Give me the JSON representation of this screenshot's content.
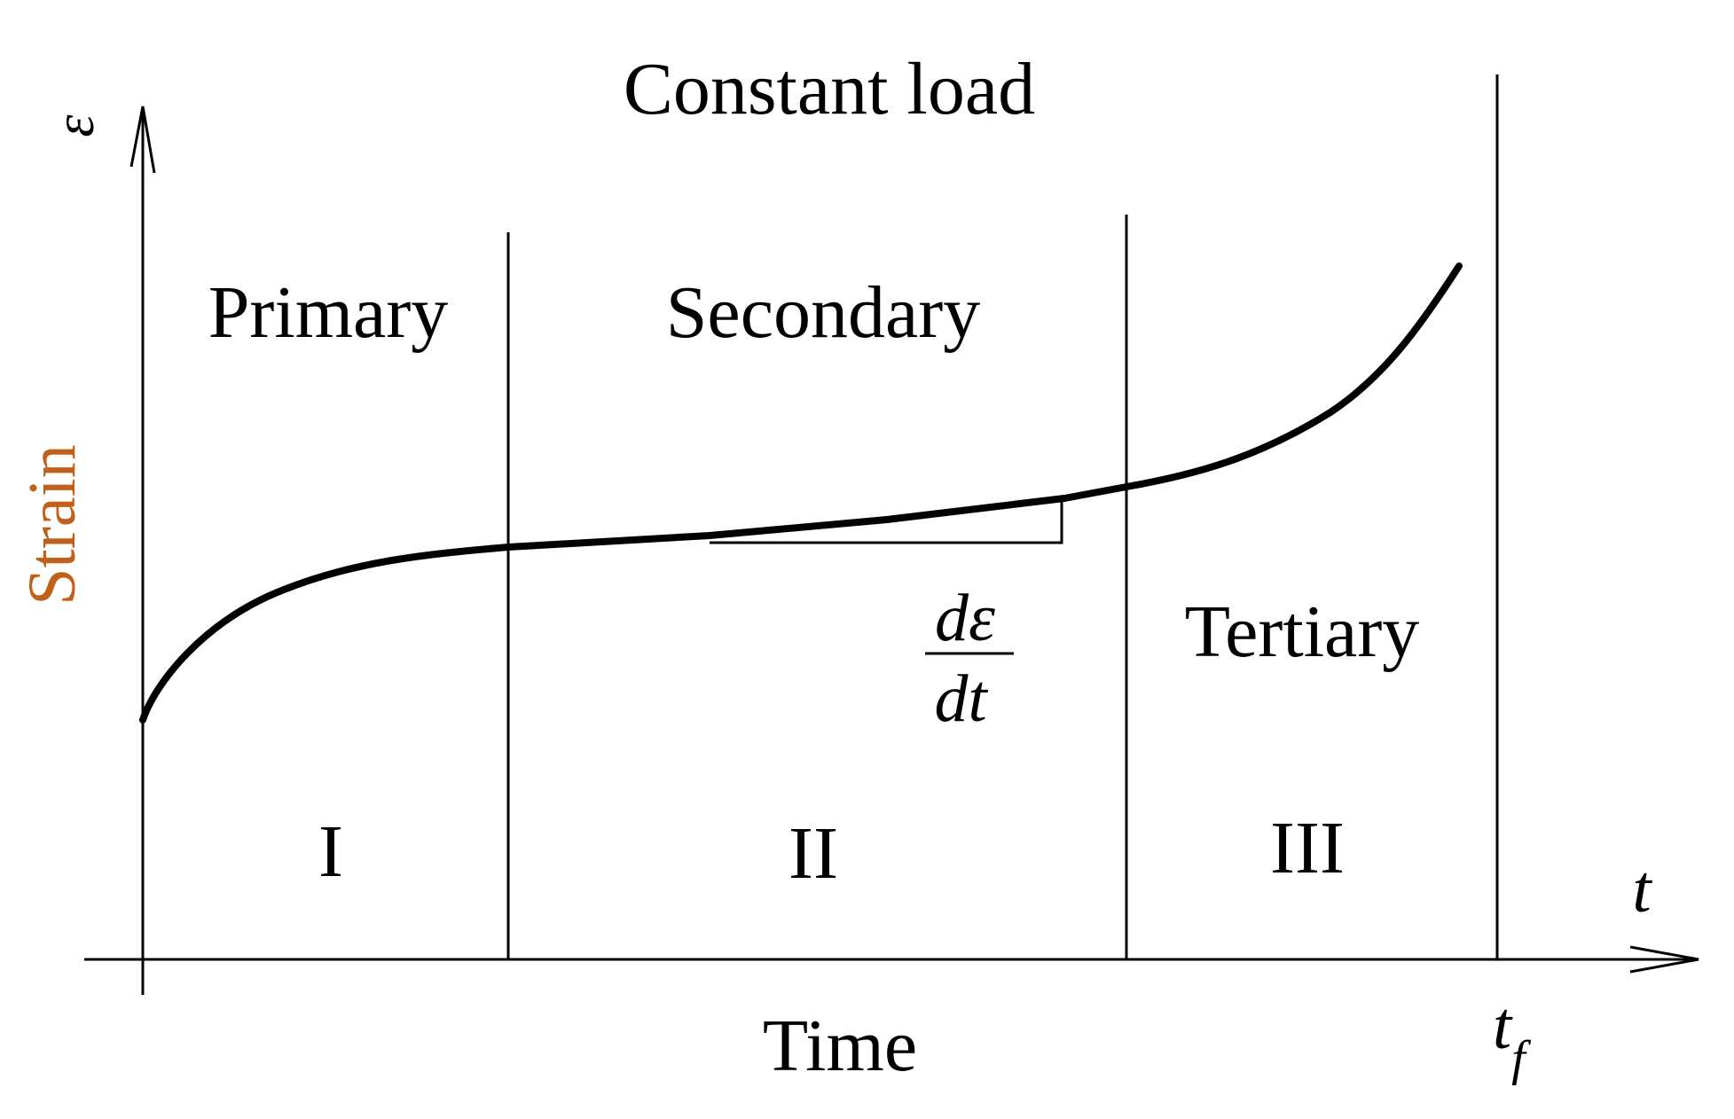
{
  "title": "Constant load",
  "axes": {
    "y_symbol": "ε",
    "y_label": "Strain",
    "x_symbol": "t",
    "x_label": "Time",
    "failure_time_base": "t",
    "failure_time_sub": "f"
  },
  "stages": [
    {
      "name": "Primary",
      "numeral": "I"
    },
    {
      "name": "Secondary",
      "numeral": "II"
    },
    {
      "name": "Tertiary",
      "numeral": "III"
    }
  ],
  "slope_label": {
    "numerator": "dε",
    "denominator": "dt"
  },
  "colors": {
    "line": "#000000",
    "text": "#000000",
    "strain_label": "#c0601a"
  }
}
